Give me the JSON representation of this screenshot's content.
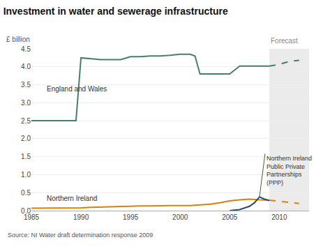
{
  "chart_data": {
    "type": "line",
    "title": "Investment in water and sewerage infrastructure",
    "ylabel": "£ billion",
    "source": "Source: NI Water draft determination response 2009",
    "forecast_label": "Forecast",
    "forecast_start": 2009,
    "xlim": [
      1985,
      2013
    ],
    "ylim": [
      0,
      4.5
    ],
    "xticks": [
      1985,
      1990,
      1995,
      2000,
      2005,
      2010
    ],
    "yticks": [
      {
        "value": 0,
        "label": "0.0"
      },
      0.5,
      {
        "value": 1,
        "label": "1.0"
      },
      1.5,
      {
        "value": 2,
        "label": "2.0"
      },
      2.5,
      {
        "value": 3,
        "label": "3.0"
      },
      3.5,
      {
        "value": 4,
        "label": "4.0"
      },
      4.5
    ],
    "grid": true,
    "series": [
      {
        "name": "England and Wales",
        "color": "#4a7c6f",
        "x": [
          1985,
          1986,
          1987,
          1988,
          1988.8,
          1989.5,
          1990,
          1991,
          1992,
          1993,
          1994,
          1995,
          1996,
          1997,
          1998,
          1999,
          1999.5,
          2000,
          2001,
          2001.5,
          2002,
          2003,
          2004,
          2005,
          2006,
          2007,
          2008,
          2009
        ],
        "values": [
          2.5,
          2.5,
          2.5,
          2.5,
          2.5,
          2.5,
          4.25,
          4.22,
          4.2,
          4.2,
          4.2,
          4.28,
          4.28,
          4.3,
          4.3,
          4.32,
          4.33,
          4.35,
          4.35,
          4.3,
          3.8,
          3.8,
          3.8,
          3.8,
          4.02,
          4.02,
          4.02,
          4.02
        ],
        "forecast_x": [
          2009,
          2010,
          2011,
          2012
        ],
        "forecast_values": [
          4.02,
          4.07,
          4.15,
          4.18
        ]
      },
      {
        "name": "Northern Ireland",
        "color": "#d4820a",
        "x": [
          1985,
          1986,
          1987,
          1988,
          1989,
          1990,
          1991,
          1992,
          1993,
          1994,
          1995,
          1996,
          1997,
          1998,
          1999,
          2000,
          2001,
          2002,
          2003,
          2004,
          2005,
          2006,
          2007,
          2008,
          2009
        ],
        "values": [
          0.07,
          0.07,
          0.07,
          0.07,
          0.07,
          0.08,
          0.09,
          0.1,
          0.11,
          0.12,
          0.13,
          0.13,
          0.13,
          0.14,
          0.14,
          0.14,
          0.14,
          0.16,
          0.18,
          0.22,
          0.27,
          0.3,
          0.32,
          0.3,
          0.29
        ],
        "forecast_x": [
          2009,
          2010,
          2011,
          2012
        ],
        "forecast_values": [
          0.29,
          0.26,
          0.22,
          0.2
        ]
      },
      {
        "name": "Northern Ireland\nPublic Private\nPartnerships\n(PPP)",
        "color": "#2b4c6f",
        "x": [
          2005,
          2006,
          2007,
          2007.5,
          2008,
          2008.5,
          2009
        ],
        "values": [
          0.0,
          0.03,
          0.12,
          0.22,
          0.38,
          0.32,
          0.28
        ]
      }
    ]
  }
}
